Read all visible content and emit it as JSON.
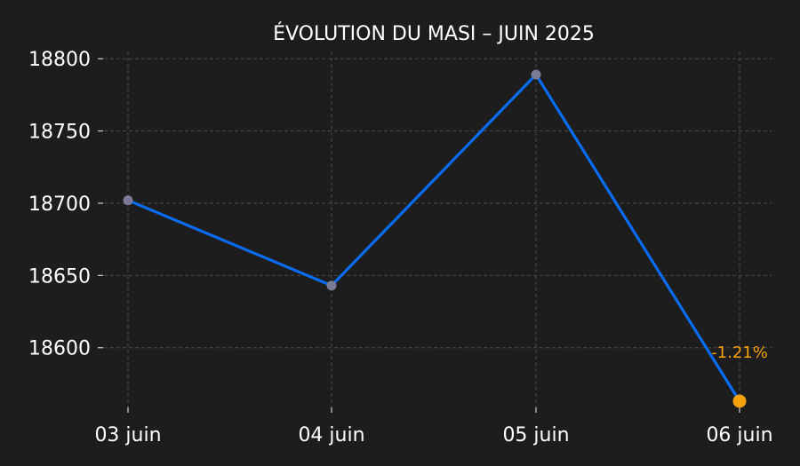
{
  "chart_data": {
    "type": "line",
    "title": "ÉVOLUTION DU MASI – JUIN 2025",
    "xlabel": "",
    "ylabel": "",
    "categories": [
      "03 juin",
      "04 juin",
      "05 juin",
      "06 juin"
    ],
    "series": [
      {
        "values": [
          18702,
          18643,
          18789,
          18563
        ]
      }
    ],
    "yticks": [
      18600,
      18650,
      18700,
      18750,
      18800
    ],
    "ylim": [
      18555,
      18805
    ],
    "grid": true,
    "annotations": [
      {
        "text": "-1.21%",
        "category": "06 juin"
      }
    ],
    "colors": {
      "background": "#1d1d1d",
      "line": "#0a6cf0",
      "marker": "#7a7a96",
      "highlight": "#f5a00f",
      "grid": "#4a4a4a",
      "text": "#ffffff"
    }
  }
}
